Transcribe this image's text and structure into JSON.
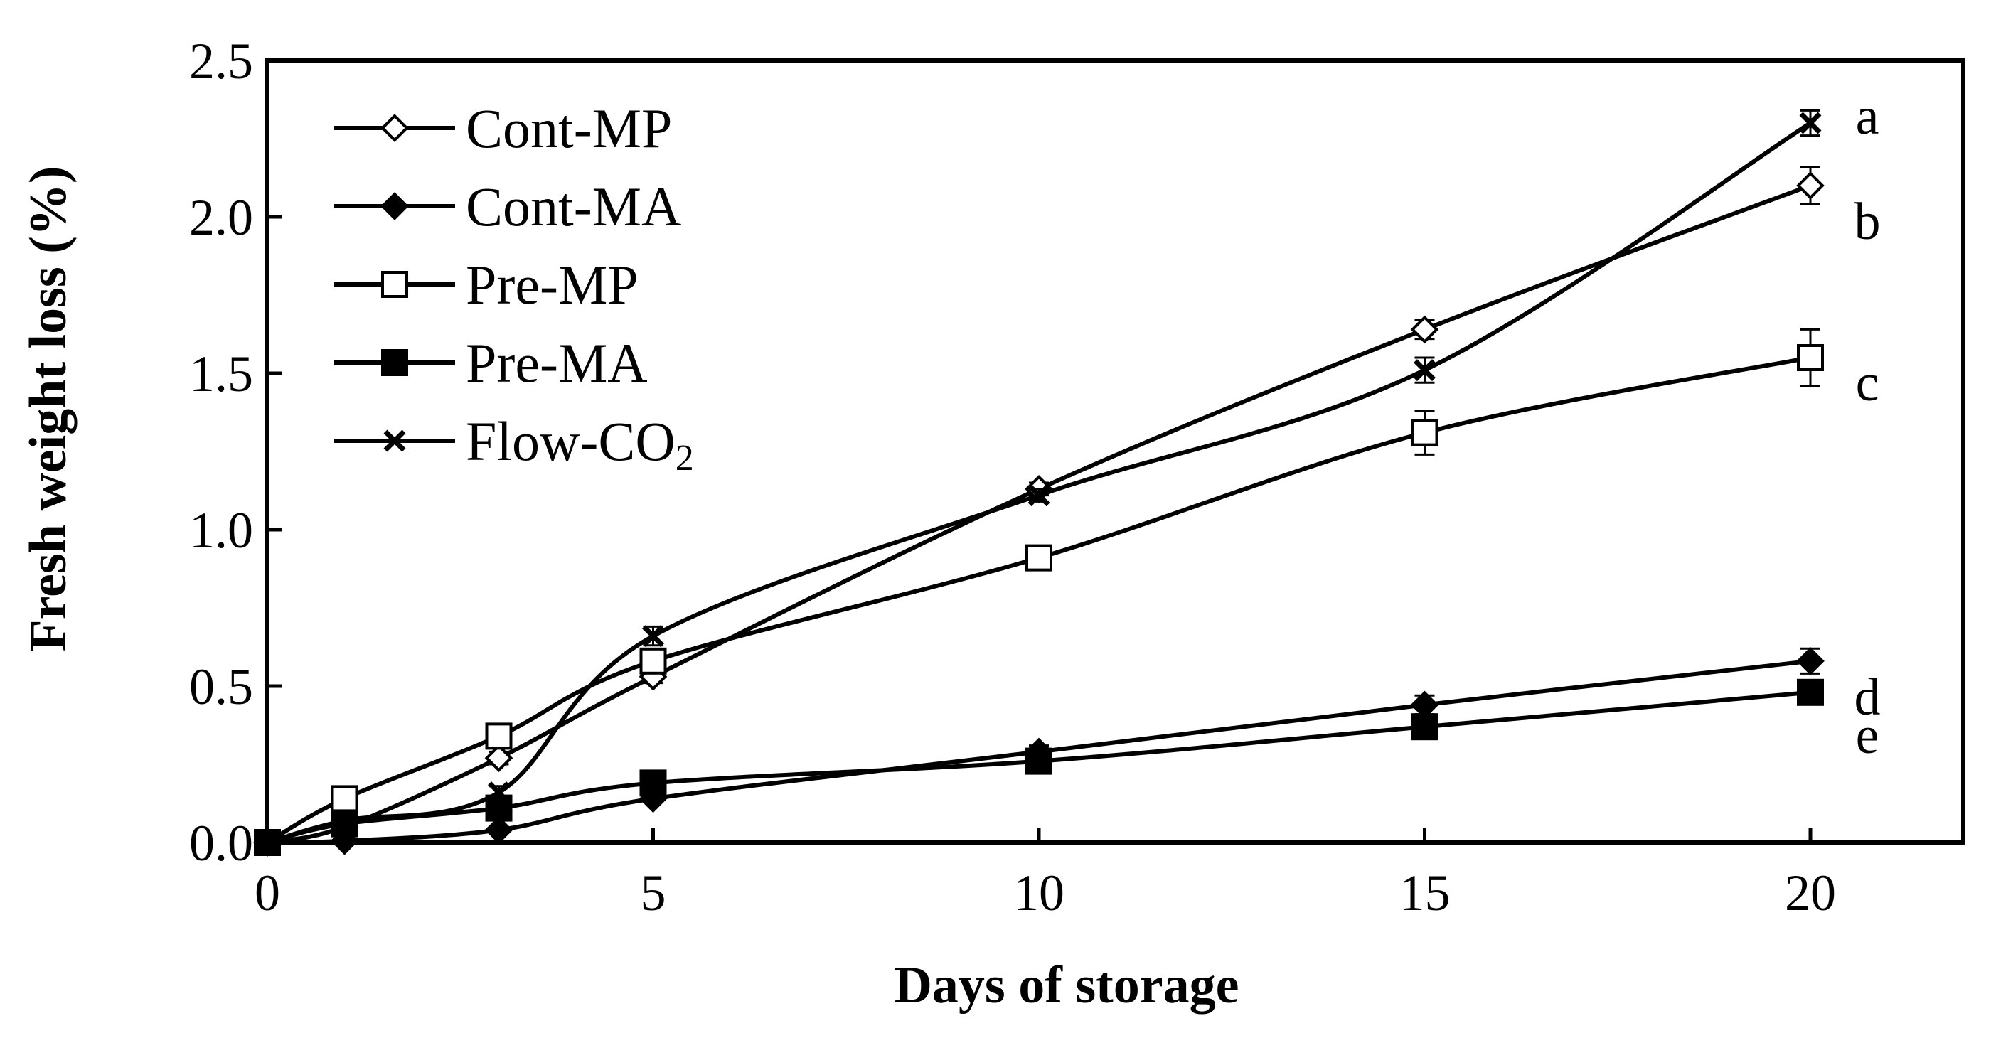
{
  "chart_data": {
    "type": "line",
    "title": "",
    "xlabel": "Days of storage",
    "ylabel": "Fresh weight loss (%)",
    "xlim": [
      0,
      22
    ],
    "ylim": [
      0,
      2.5
    ],
    "x_ticks": [
      "0",
      "5",
      "10",
      "15",
      "20"
    ],
    "y_ticks": [
      "0.0",
      "0.5",
      "1.0",
      "1.5",
      "2.0",
      "2.5"
    ],
    "x": [
      0,
      1,
      3,
      5,
      10,
      15,
      20
    ],
    "grid": false,
    "legend_position": "top-left",
    "series": [
      {
        "name": "Cont-MP",
        "marker": "diamond-open",
        "values": [
          0,
          0.05,
          0.27,
          0.53,
          1.13,
          1.64,
          2.1
        ],
        "errors": [
          0,
          0.01,
          0.02,
          0.02,
          0.02,
          0.03,
          0.06
        ],
        "significance": "b"
      },
      {
        "name": "Cont-MA",
        "marker": "diamond-filled",
        "values": [
          0,
          0.005,
          0.04,
          0.14,
          0.29,
          0.44,
          0.58
        ],
        "errors": [
          0,
          0.005,
          0.01,
          0.01,
          0.02,
          0.03,
          0.04
        ],
        "significance": "d"
      },
      {
        "name": "Pre-MP",
        "marker": "square-open",
        "values": [
          0,
          0.14,
          0.34,
          0.58,
          0.91,
          1.31,
          1.55
        ],
        "errors": [
          0,
          0.01,
          0.02,
          0.03,
          0.02,
          0.07,
          0.09
        ],
        "significance": "c"
      },
      {
        "name": "Pre-MA",
        "marker": "square-filled",
        "values": [
          0,
          0.06,
          0.11,
          0.19,
          0.26,
          0.37,
          0.48
        ],
        "errors": [
          0,
          0.01,
          0.01,
          0.01,
          0.01,
          0.02,
          0.02
        ],
        "significance": "e"
      },
      {
        "name": "Flow-CO",
        "name_subscript": "2",
        "marker": "x",
        "values": [
          0,
          0.07,
          0.16,
          0.66,
          1.11,
          1.51,
          2.3
        ],
        "errors": [
          0,
          0.01,
          0.02,
          0.03,
          0.02,
          0.04,
          0.04
        ],
        "significance": "a"
      }
    ]
  }
}
